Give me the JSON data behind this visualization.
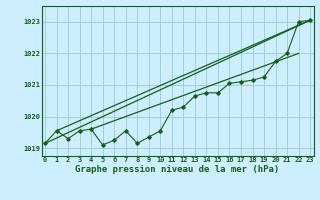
{
  "background_color": "#cceeff",
  "grid_color": "#99cccc",
  "line_color": "#1a5c1a",
  "x": [
    0,
    1,
    2,
    3,
    4,
    5,
    6,
    7,
    8,
    9,
    10,
    11,
    12,
    13,
    14,
    15,
    16,
    17,
    18,
    19,
    20,
    21,
    22,
    23
  ],
  "series1": [
    1019.15,
    1019.55,
    1019.3,
    1019.55,
    1019.6,
    1019.1,
    1019.25,
    1019.55,
    1019.15,
    1019.35,
    1019.55,
    1020.2,
    1020.3,
    1020.65,
    1020.75,
    1020.75,
    1021.05,
    1021.1,
    1021.15,
    1021.25,
    1021.75,
    1022.0,
    1023.0,
    1023.05
  ],
  "trend_line1_x": [
    0,
    23
  ],
  "trend_line1_y": [
    1019.15,
    1023.05
  ],
  "trend_line2_x": [
    1,
    23
  ],
  "trend_line2_y": [
    1019.55,
    1023.05
  ],
  "trend_line3_x": [
    4,
    22
  ],
  "trend_line3_y": [
    1019.6,
    1022.0
  ],
  "ylim_min": 1018.75,
  "ylim_max": 1023.5,
  "xlim_min": -0.3,
  "xlim_max": 23.3,
  "yticks": [
    1019,
    1020,
    1021,
    1022,
    1023
  ],
  "xticks": [
    0,
    1,
    2,
    3,
    4,
    5,
    6,
    7,
    8,
    9,
    10,
    11,
    12,
    13,
    14,
    15,
    16,
    17,
    18,
    19,
    20,
    21,
    22,
    23
  ],
  "tick_fontsize": 5.0,
  "xlabel_fontsize": 6.5,
  "xlabel": "Graphe pression niveau de la mer (hPa)"
}
